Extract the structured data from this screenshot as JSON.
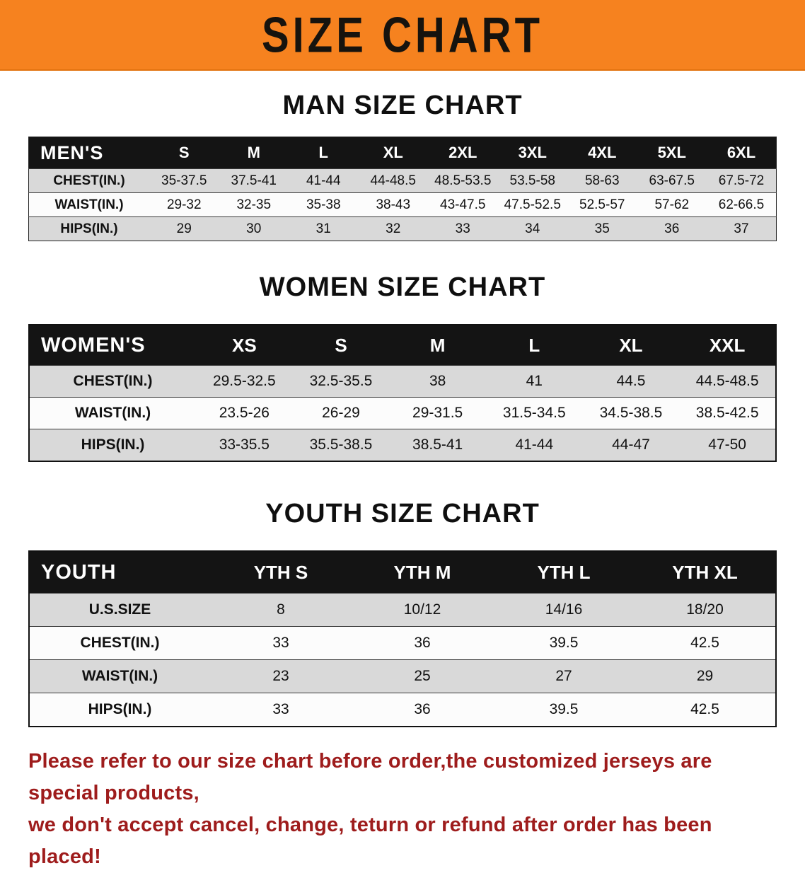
{
  "banner": {
    "title": "SIZE CHART"
  },
  "sections": [
    {
      "title": "MAN SIZE CHART",
      "table": {
        "header_label": "MEN'S",
        "columns": [
          "S",
          "M",
          "L",
          "XL",
          "2XL",
          "3XL",
          "4XL",
          "5XL",
          "6XL"
        ],
        "rows": [
          {
            "label": "CHEST(IN.)",
            "values": [
              "35-37.5",
              "37.5-41",
              "41-44",
              "44-48.5",
              "48.5-53.5",
              "53.5-58",
              "58-63",
              "63-67.5",
              "67.5-72"
            ]
          },
          {
            "label": "WAIST(IN.)",
            "values": [
              "29-32",
              "32-35",
              "35-38",
              "38-43",
              "43-47.5",
              "47.5-52.5",
              "52.5-57",
              "57-62",
              "62-66.5"
            ]
          },
          {
            "label": "HIPS(IN.)",
            "values": [
              "29",
              "30",
              "31",
              "32",
              "33",
              "34",
              "35",
              "36",
              "37"
            ]
          }
        ]
      }
    },
    {
      "title": "WOMEN SIZE CHART",
      "table": {
        "header_label": "WOMEN'S",
        "columns": [
          "XS",
          "S",
          "M",
          "L",
          "XL",
          "XXL"
        ],
        "rows": [
          {
            "label": "CHEST(IN.)",
            "values": [
              "29.5-32.5",
              "32.5-35.5",
              "38",
              "41",
              "44.5",
              "44.5-48.5"
            ]
          },
          {
            "label": "WAIST(IN.)",
            "values": [
              "23.5-26",
              "26-29",
              "29-31.5",
              "31.5-34.5",
              "34.5-38.5",
              "38.5-42.5"
            ]
          },
          {
            "label": "HIPS(IN.)",
            "values": [
              "33-35.5",
              "35.5-38.5",
              "38.5-41",
              "41-44",
              "44-47",
              "47-50"
            ]
          }
        ]
      }
    },
    {
      "title": "YOUTH SIZE CHART",
      "table": {
        "header_label": "YOUTH",
        "columns": [
          "YTH S",
          "YTH M",
          "YTH L",
          "YTH XL"
        ],
        "rows": [
          {
            "label": "U.S.SIZE",
            "values": [
              "8",
              "10/12",
              "14/16",
              "18/20"
            ]
          },
          {
            "label": "CHEST(IN.)",
            "values": [
              "33",
              "36",
              "39.5",
              "42.5"
            ]
          },
          {
            "label": "WAIST(IN.)",
            "values": [
              "23",
              "25",
              "27",
              "29"
            ]
          },
          {
            "label": "HIPS(IN.)",
            "values": [
              "33",
              "36",
              "39.5",
              "42.5"
            ]
          }
        ]
      }
    }
  ],
  "footer": {
    "line1": "Please refer to our size chart before order,the customized jerseys are special products,",
    "line2": "we don't accept cancel, change, teturn or refund after order has been placed!"
  },
  "colors": {
    "banner_orange": "#f6821f",
    "header_black": "#141414",
    "row_gray": "#d9d9d9",
    "footer_red": "#9e1c1c"
  }
}
